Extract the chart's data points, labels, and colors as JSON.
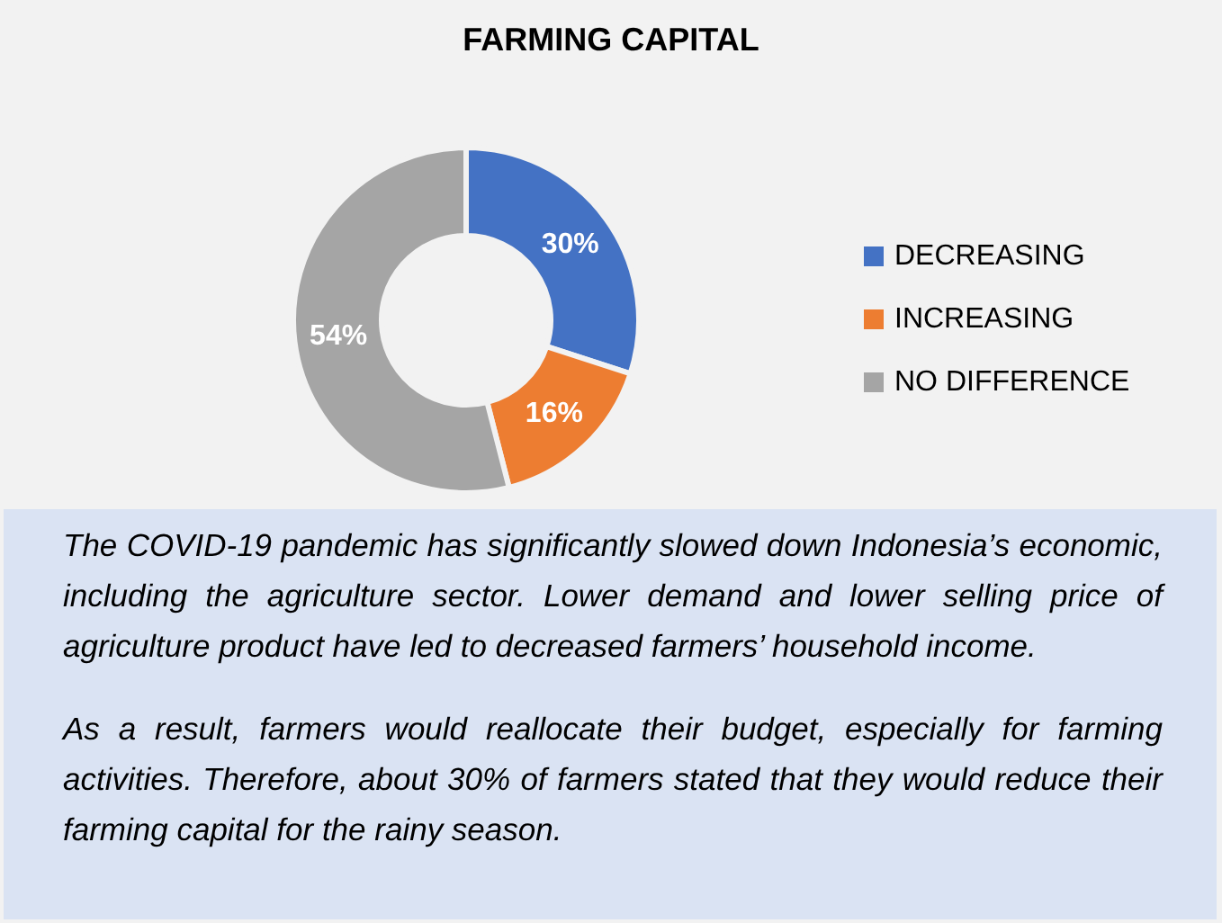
{
  "chart_data": {
    "type": "donut",
    "title": "FARMING CAPITAL",
    "categories": [
      "DECREASING",
      "INCREASING",
      "NO DIFFERENCE"
    ],
    "values": [
      30,
      16,
      54
    ],
    "colors": [
      "#4472c4",
      "#ed7d31",
      "#a5a5a5"
    ],
    "value_labels": [
      "30%",
      "16%",
      "54%"
    ],
    "legend": "right",
    "annotations": [
      "The COVID-19 pandemic has significantly slowed down Indonesia’s economic, including the agriculture sector. Lower demand and lower selling price of agriculture product have led to decreased farmers’ household income.",
      "As a result, farmers would reallocate their budget, especially for farming activities. Therefore, about 30% of farmers stated that they would reduce their farming capital for the rainy season."
    ]
  }
}
